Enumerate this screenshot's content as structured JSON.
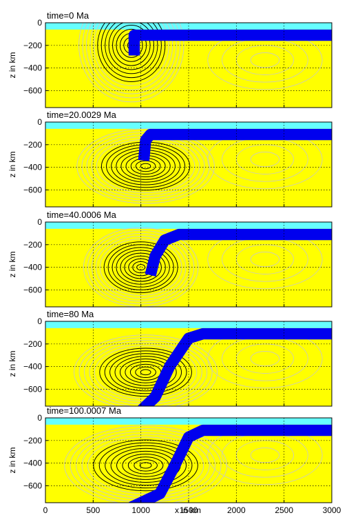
{
  "figure": {
    "x_ticks": [
      "0",
      "500",
      "1000",
      "1500",
      "2000",
      "2500",
      "3000"
    ],
    "y_ticks": [
      "0",
      "−200",
      "−400",
      "−600"
    ],
    "xlabel": "x in km",
    "ylabel": "z in km"
  },
  "colors": {
    "mantle": "#ffff00",
    "water": "#66ffff",
    "slab": "#0000ee",
    "contour_dark": "#000000",
    "contour_light": "#c8c8c8",
    "grid": "#000000"
  },
  "chart_data": [
    {
      "type": "contour",
      "title": "time=0 Ma",
      "xlabel": "",
      "ylabel": "z in km",
      "xlim": [
        0,
        3000
      ],
      "ylim": [
        -750,
        0
      ],
      "x_ticks": [
        0,
        500,
        1000,
        1500,
        2000,
        2500,
        3000
      ],
      "y_ticks": [
        0,
        -200,
        -400,
        -600
      ],
      "grid": "dotted",
      "water_depth_km": 60,
      "vortex_center": [
        900,
        -200
      ],
      "vortex_extent": [
        550,
        500
      ],
      "slab_top_path": [
        [
          3000,
          -60
        ],
        [
          1000,
          -60
        ],
        [
          930,
          -60
        ],
        [
          930,
          -240
        ]
      ],
      "slab_thickness_km": 100
    },
    {
      "type": "contour",
      "title": "time=20.0029 Ma",
      "xlabel": "",
      "ylabel": "z in km",
      "xlim": [
        0,
        3000
      ],
      "ylim": [
        -750,
        0
      ],
      "x_ticks": [
        0,
        500,
        1000,
        1500,
        2000,
        2500,
        3000
      ],
      "y_ticks": [
        0,
        -200,
        -400,
        -600
      ],
      "grid": "dotted",
      "water_depth_km": 60,
      "vortex_center": [
        1050,
        -390
      ],
      "vortex_extent": [
        720,
        330
      ],
      "slab_top_path": [
        [
          3000,
          -60
        ],
        [
          1100,
          -60
        ],
        [
          1050,
          -110
        ],
        [
          1030,
          -290
        ]
      ],
      "slab_thickness_km": 100
    },
    {
      "type": "contour",
      "title": "time=40.0006 Ma",
      "xlabel": "",
      "ylabel": "z in km",
      "xlim": [
        0,
        3000
      ],
      "ylim": [
        -750,
        0
      ],
      "x_ticks": [
        0,
        500,
        1000,
        1500,
        2000,
        2500,
        3000
      ],
      "y_ticks": [
        0,
        -200,
        -400,
        -600
      ],
      "grid": "dotted",
      "water_depth_km": 60,
      "vortex_center": [
        1000,
        -400
      ],
      "vortex_extent": [
        600,
        350
      ],
      "slab_top_path": [
        [
          3000,
          -60
        ],
        [
          1400,
          -60
        ],
        [
          1250,
          -110
        ],
        [
          1150,
          -250
        ],
        [
          1100,
          -420
        ]
      ],
      "slab_thickness_km": 100
    },
    {
      "type": "contour",
      "title": "time=80 Ma",
      "xlabel": "",
      "ylabel": "z in km",
      "xlim": [
        0,
        3000
      ],
      "ylim": [
        -750,
        0
      ],
      "x_ticks": [
        0,
        500,
        1000,
        1500,
        2000,
        2500,
        3000
      ],
      "y_ticks": [
        0,
        -200,
        -400,
        -600
      ],
      "grid": "dotted",
      "water_depth_km": 60,
      "vortex_center": [
        1050,
        -450
      ],
      "vortex_extent": [
        750,
        330
      ],
      "slab_top_path": [
        [
          3000,
          -60
        ],
        [
          1650,
          -60
        ],
        [
          1500,
          -100
        ],
        [
          1300,
          -350
        ],
        [
          1150,
          -620
        ],
        [
          1000,
          -740
        ]
      ],
      "slab_thickness_km": 100
    },
    {
      "type": "contour",
      "title": "time=100.0007 Ma",
      "xlabel": "x in km",
      "ylabel": "z in km",
      "xlim": [
        0,
        3000
      ],
      "ylim": [
        -750,
        0
      ],
      "x_ticks": [
        0,
        500,
        1000,
        1500,
        2000,
        2500,
        3000
      ],
      "y_ticks": [
        0,
        -200,
        -400,
        -600
      ],
      "grid": "dotted",
      "water_depth_km": 60,
      "vortex_center": [
        1050,
        -420
      ],
      "vortex_extent": [
        850,
        350
      ],
      "slab_top_path": [
        [
          3000,
          -60
        ],
        [
          1650,
          -60
        ],
        [
          1500,
          -120
        ],
        [
          1350,
          -380
        ],
        [
          1200,
          -620
        ],
        [
          900,
          -740
        ]
      ],
      "slab_thickness_km": 100
    }
  ]
}
